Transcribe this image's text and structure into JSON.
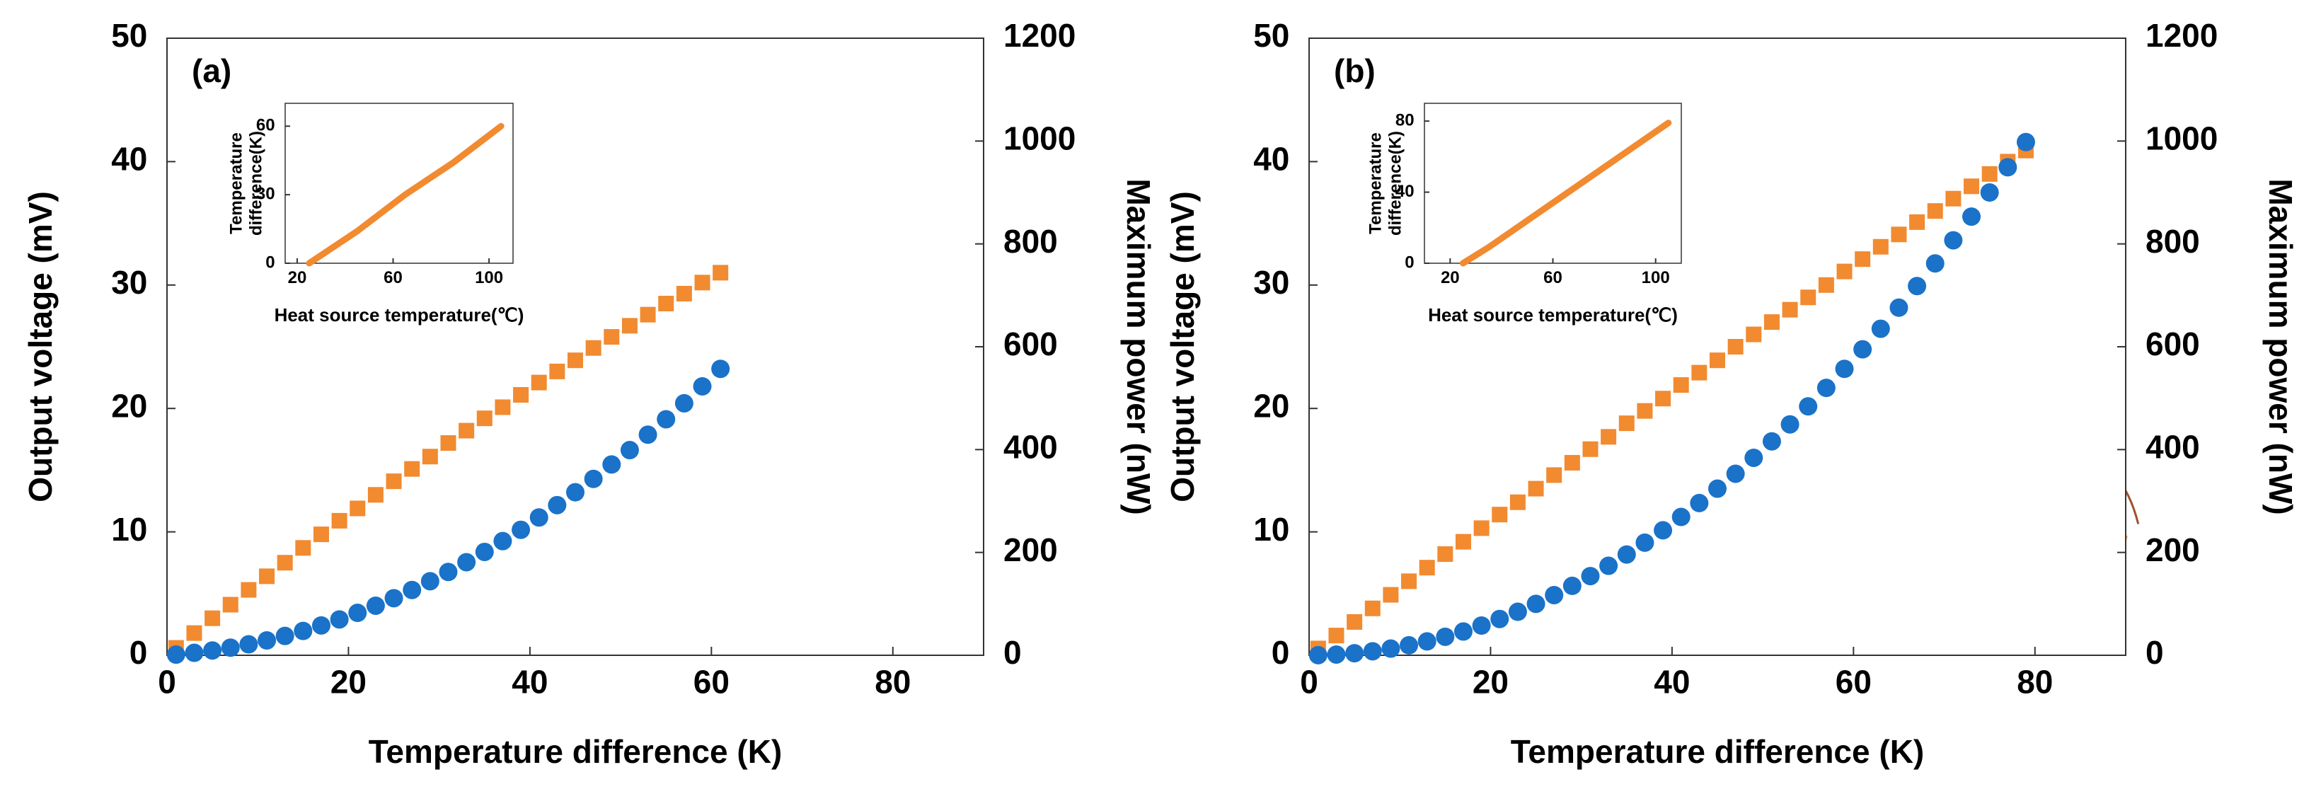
{
  "chart_data": [
    {
      "type": "scatter",
      "annotation": "(a)",
      "xlabel": "Temperature difference (K)",
      "ylabel": "Output voltage (mV)",
      "y2label": "Maximum power (nW)",
      "xlim": [
        0,
        90
      ],
      "xticks": [
        0,
        20,
        40,
        60,
        80
      ],
      "ylim": [
        0,
        50
      ],
      "yticks": [
        0,
        10,
        20,
        30,
        40,
        50
      ],
      "y2lim": [
        0,
        1200
      ],
      "y2ticks": [
        0,
        200,
        400,
        600,
        800,
        1000,
        1200
      ],
      "x": [
        1,
        3,
        5,
        7,
        9,
        11,
        13,
        15,
        17,
        19,
        21,
        23,
        25,
        27,
        29,
        31,
        33,
        35,
        37,
        39,
        41,
        43,
        45,
        47,
        49,
        51,
        53,
        55,
        57,
        59,
        61
      ],
      "series": [
        {
          "color": "#f28a30",
          "marker": "square",
          "values": [
            0.6,
            1.8,
            3.0,
            4.1,
            5.3,
            6.4,
            7.5,
            8.7,
            9.8,
            10.9,
            11.9,
            13.0,
            14.1,
            15.1,
            16.1,
            17.2,
            18.2,
            19.2,
            20.1,
            21.1,
            22.1,
            23.0,
            23.9,
            24.9,
            25.8,
            26.7,
            27.6,
            28.5,
            29.3,
            30.2,
            31.0
          ]
        },
        {
          "color": "#1a72c9",
          "marker": "circle",
          "axis": "y2",
          "values": [
            1.3,
            4.8,
            9.3,
            14.8,
            21.3,
            28.9,
            37.6,
            47.3,
            58.0,
            69.7,
            82.5,
            96.4,
            111,
            127,
            144,
            162,
            181,
            201,
            222,
            244,
            268,
            292,
            317,
            343,
            371,
            399,
            429,
            459,
            490,
            523,
            557
          ]
        }
      ]
    },
    {
      "type": "line",
      "xlabel": "Heat source temperature(℃)",
      "ylabel_lines": [
        "Temperature",
        "difference(K)"
      ],
      "xlim": [
        15,
        110
      ],
      "xticks": [
        20,
        60,
        100
      ],
      "ylim": [
        0,
        70
      ],
      "yticks": [
        0,
        30,
        60
      ],
      "x": [
        25,
        35,
        45,
        55,
        65,
        75,
        85,
        95,
        105
      ],
      "series": [
        {
          "color": "#f28a30",
          "values": [
            0,
            7,
            14,
            22,
            30,
            37,
            44,
            52,
            60
          ]
        }
      ]
    },
    {
      "type": "scatter",
      "annotation": "(b)",
      "xlabel": "Temperature difference (K)",
      "ylabel": "Output voltage (mV)",
      "y2label": "Maximum power (nW)",
      "xlim": [
        0,
        90
      ],
      "xticks": [
        0,
        20,
        40,
        60,
        80
      ],
      "ylim": [
        0,
        50
      ],
      "yticks": [
        0,
        10,
        20,
        30,
        40,
        50
      ],
      "y2lim": [
        0,
        1200
      ],
      "y2ticks": [
        0,
        200,
        400,
        600,
        800,
        1000,
        1200
      ],
      "x": [
        1,
        3,
        5,
        7,
        9,
        11,
        13,
        15,
        17,
        19,
        21,
        23,
        25,
        27,
        29,
        31,
        33,
        35,
        37,
        39,
        41,
        43,
        45,
        47,
        49,
        51,
        53,
        55,
        57,
        59,
        61,
        63,
        65,
        67,
        69,
        71,
        73,
        75,
        77,
        79
      ],
      "series": [
        {
          "color": "#f28a30",
          "marker": "square",
          "values": [
            0.55,
            1.6,
            2.7,
            3.8,
            4.9,
            6.0,
            7.1,
            8.2,
            9.2,
            10.3,
            11.4,
            12.4,
            13.5,
            14.6,
            15.6,
            16.7,
            17.7,
            18.8,
            19.8,
            20.8,
            21.9,
            22.9,
            23.9,
            25.0,
            26.0,
            27.0,
            28.0,
            29.0,
            30.0,
            31.1,
            32.1,
            33.1,
            34.1,
            35.1,
            36.0,
            37.0,
            38.0,
            39.0,
            40.0,
            40.9
          ]
        },
        {
          "color": "#1a72c9",
          "marker": "circle",
          "axis": "y2",
          "values": [
            0.2,
            1.4,
            4,
            7.8,
            13,
            19.4,
            27,
            36,
            46.2,
            57.8,
            70.6,
            84.6,
            100,
            117,
            135,
            154,
            174,
            196,
            219,
            243,
            269,
            296,
            324,
            353,
            384,
            416,
            449,
            484,
            520,
            557,
            595,
            635,
            676,
            718,
            762,
            807,
            853,
            900,
            949,
            998
          ]
        }
      ]
    },
    {
      "type": "line",
      "xlabel": "Heat source temperature(℃)",
      "ylabel_lines": [
        "Temperature",
        "difference(K)"
      ],
      "xlim": [
        10,
        110
      ],
      "xticks": [
        20,
        60,
        100
      ],
      "ylim": [
        0,
        90
      ],
      "yticks": [
        0,
        40,
        80
      ],
      "x": [
        25,
        35,
        45,
        55,
        65,
        75,
        85,
        95,
        105
      ],
      "series": [
        {
          "color": "#f28a30",
          "values": [
            0,
            9,
            19,
            29,
            39,
            49,
            59,
            69,
            79
          ]
        }
      ]
    }
  ]
}
